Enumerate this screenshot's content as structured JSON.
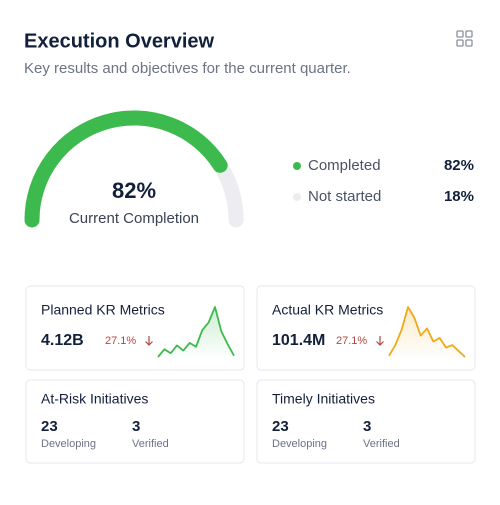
{
  "header": {
    "title": "Execution Overview",
    "subtitle": "Key results and objectives for the current quarter."
  },
  "gauge": {
    "values": [
      82,
      18
    ],
    "value_labels": [
      "82%",
      "18%"
    ],
    "caption": "Current Completion",
    "legend": [
      {
        "name": "Completed",
        "color": "#3dba4e"
      },
      {
        "name": "Not started",
        "color": "#ececf1"
      }
    ]
  },
  "metric_cards": [
    {
      "title": "Planned KR Metrics",
      "value": "4.12B",
      "change": "27.1%",
      "color": "#3dba4e",
      "sparkline": [
        8,
        20,
        14,
        26,
        18,
        30,
        24,
        50,
        62,
        86,
        48,
        28,
        10
      ]
    },
    {
      "title": "Actual KR Metrics",
      "value": "101.4M",
      "change": "27.1%",
      "color": "#f0a81c",
      "sparkline": [
        6,
        24,
        50,
        88,
        70,
        40,
        52,
        30,
        36,
        20,
        24,
        14,
        4
      ]
    }
  ],
  "initiative_cards": [
    {
      "title": "At-Risk Initiatives",
      "stats": [
        {
          "value": 23,
          "label": "Developing"
        },
        {
          "value": 3,
          "label": "Verified"
        }
      ]
    },
    {
      "title": "Timely Initiatives",
      "stats": [
        {
          "value": 23,
          "label": "Developing"
        },
        {
          "value": 3,
          "label": "Verified"
        }
      ]
    }
  ]
}
